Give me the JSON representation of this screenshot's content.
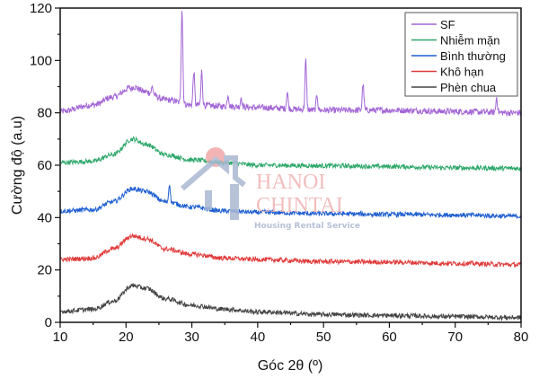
{
  "chart_data": {
    "type": "line",
    "title": "",
    "xlabel": "Góc 2θ (º)",
    "ylabel": "Cường độ (a.u)",
    "xlim": [
      10,
      80
    ],
    "ylim": [
      0,
      120
    ],
    "x_ticks": [
      "10",
      "20",
      "30",
      "40",
      "50",
      "60",
      "70",
      "80"
    ],
    "y_ticks": [
      "0",
      "20",
      "40",
      "60",
      "80",
      "100",
      "120"
    ],
    "grid": false,
    "legend_position": "top-right",
    "series": [
      {
        "name": "SF",
        "color": "#a366d6",
        "baseline": [
          [
            10,
            80.5
          ],
          [
            15,
            83
          ],
          [
            18,
            86
          ],
          [
            21,
            90
          ],
          [
            23,
            88
          ],
          [
            26,
            85
          ],
          [
            30,
            83
          ],
          [
            35,
            82.5
          ],
          [
            40,
            82
          ],
          [
            50,
            81
          ],
          [
            60,
            81
          ],
          [
            70,
            80.5
          ],
          [
            80,
            80
          ]
        ],
        "peaks": [
          [
            16.3,
            84
          ],
          [
            20.8,
            89
          ],
          [
            24,
            90
          ],
          [
            28.5,
            120
          ],
          [
            30.3,
            96
          ],
          [
            31.5,
            96
          ],
          [
            35.5,
            87
          ],
          [
            37.5,
            86
          ],
          [
            44.5,
            88
          ],
          [
            47.3,
            100
          ],
          [
            49,
            87
          ],
          [
            56,
            91
          ],
          [
            76.3,
            86
          ]
        ],
        "noise": 1.2
      },
      {
        "name": "Nhiễm mặn",
        "color": "#2ea86a",
        "baseline": [
          [
            10,
            61
          ],
          [
            15,
            61.5
          ],
          [
            18,
            64
          ],
          [
            21,
            70
          ],
          [
            23,
            68
          ],
          [
            26,
            64
          ],
          [
            30,
            62
          ],
          [
            35,
            61
          ],
          [
            40,
            60
          ],
          [
            50,
            59.8
          ],
          [
            60,
            59.5
          ],
          [
            70,
            59
          ],
          [
            80,
            58.8
          ]
        ],
        "peaks": [],
        "noise": 0.9
      },
      {
        "name": "Bình thường",
        "color": "#1f5fd1",
        "baseline": [
          [
            10,
            42.5
          ],
          [
            15,
            43
          ],
          [
            18,
            46
          ],
          [
            21,
            51
          ],
          [
            23,
            50
          ],
          [
            26,
            46
          ],
          [
            30,
            44
          ],
          [
            35,
            42.5
          ],
          [
            40,
            42
          ],
          [
            50,
            41.5
          ],
          [
            60,
            41.2
          ],
          [
            70,
            41
          ],
          [
            80,
            40.5
          ]
        ],
        "peaks": [
          [
            26.6,
            53
          ]
        ],
        "noise": 0.9
      },
      {
        "name": "Khô hạn",
        "color": "#e03a3a",
        "baseline": [
          [
            10,
            24
          ],
          [
            15,
            24.5
          ],
          [
            18,
            28
          ],
          [
            21,
            33
          ],
          [
            23,
            32
          ],
          [
            26,
            28
          ],
          [
            30,
            26
          ],
          [
            35,
            24.5
          ],
          [
            40,
            24
          ],
          [
            50,
            23.2
          ],
          [
            60,
            23
          ],
          [
            70,
            22.5
          ],
          [
            80,
            22
          ]
        ],
        "peaks": [],
        "noise": 0.9
      },
      {
        "name": "Phèn chua",
        "color": "#444444",
        "baseline": [
          [
            10,
            4.2
          ],
          [
            15,
            5
          ],
          [
            18,
            8
          ],
          [
            21,
            14
          ],
          [
            23,
            13
          ],
          [
            26,
            9
          ],
          [
            30,
            6.5
          ],
          [
            35,
            5
          ],
          [
            40,
            4
          ],
          [
            50,
            3
          ],
          [
            60,
            2.6
          ],
          [
            70,
            2.2
          ],
          [
            80,
            1.8
          ]
        ],
        "peaks": [],
        "noise": 0.9
      }
    ]
  },
  "watermark": {
    "line1": "HANOI",
    "line2": "CHINTAI",
    "tagline": "Housing Rental Service"
  }
}
